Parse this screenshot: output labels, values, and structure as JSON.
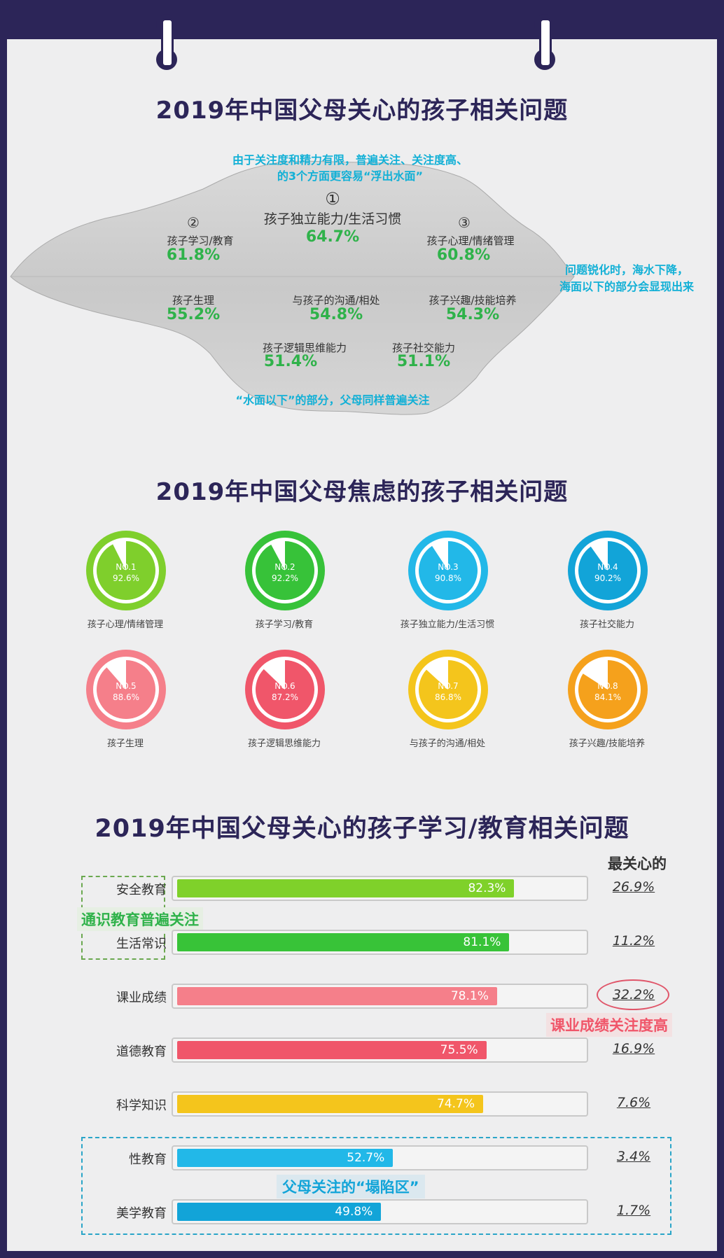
{
  "section1": {
    "title": "2019年中国父母关心的孩子相关问题",
    "note_top_line1": "由于关注度和精力有限，普遍关注、关注度高、",
    "note_top_line2": "的3个方面更容易“浮出水面”",
    "note_right_line1": "问题锐化时，海水下降，",
    "note_right_line2": "海面以下的部分会显现出来",
    "note_bottom": "“水面以下”的部分，父母同样普遍关注",
    "items": [
      {
        "rank": "①",
        "label": "孩子独立能力/生活习惯",
        "value": "64.7%"
      },
      {
        "rank": "②",
        "label": "孩子学习/教育",
        "value": "61.8%"
      },
      {
        "rank": "③",
        "label": "孩子心理/情绪管理",
        "value": "60.8%"
      },
      {
        "label": "孩子生理",
        "value": "55.2%"
      },
      {
        "label": "与孩子的沟通/相处",
        "value": "54.8%"
      },
      {
        "label": "孩子兴趣/技能培养",
        "value": "54.3%"
      },
      {
        "label": "孩子逻辑思维能力",
        "value": "51.4%"
      },
      {
        "label": "孩子社交能力",
        "value": "51.1%"
      }
    ]
  },
  "section2": {
    "title": "2019年中国父母焦虑的孩子相关问题",
    "items": [
      {
        "no": "NO.1",
        "value": "92.6%",
        "label": "孩子心理/情绪管理",
        "color": "#7fcf2c"
      },
      {
        "no": "NO.2",
        "value": "92.2%",
        "label": "孩子学习/教育",
        "color": "#37c239"
      },
      {
        "no": "NO.3",
        "value": "90.8%",
        "label": "孩子独立能力/生活习惯",
        "color": "#22b8e8"
      },
      {
        "no": "NO.4",
        "value": "90.2%",
        "label": "孩子社交能力",
        "color": "#12a4d8"
      },
      {
        "no": "NO.5",
        "value": "88.6%",
        "label": "孩子生理",
        "color": "#f57f8a"
      },
      {
        "no": "NO.6",
        "value": "87.2%",
        "label": "孩子逻辑思维能力",
        "color": "#f0566a"
      },
      {
        "no": "NO.7",
        "value": "86.8%",
        "label": "与孩子的沟通/相处",
        "color": "#f4c51c"
      },
      {
        "no": "NO.8",
        "value": "84.1%",
        "label": "孩子兴趣/技能培养",
        "color": "#f5a11c"
      }
    ]
  },
  "section3": {
    "title": "2019年中国父母关心的孩子学习/教育相关问题",
    "right_header": "最关心的",
    "callout_green": "通识教育普遍关注",
    "callout_red": "课业成绩关注度高",
    "callout_blue": "父母关注的“塌陷区”"
  },
  "chart_data": {
    "type": "bar",
    "title": "2019年中国父母关心的孩子学习/教育相关问题",
    "categories": [
      "安全教育",
      "生活常识",
      "课业成绩",
      "道德教育",
      "科学知识",
      "性教育",
      "美学教育"
    ],
    "series": [
      {
        "name": "",
        "values": [
          82.3,
          81.1,
          78.1,
          75.5,
          74.7,
          52.7,
          49.8
        ]
      },
      {
        "name": "最关心的",
        "values": [
          26.9,
          11.2,
          32.2,
          16.9,
          7.6,
          3.4,
          1.7
        ]
      }
    ],
    "value_labels": [
      "82.3%",
      "81.1%",
      "78.1%",
      "75.5%",
      "74.7%",
      "52.7%",
      "49.8%"
    ],
    "most_labels": [
      "26.9%",
      "11.2%",
      "32.2%",
      "16.9%",
      "7.6%",
      "3.4%",
      "1.7%"
    ],
    "colors": [
      "#7fd12a",
      "#38c338",
      "#f57f8a",
      "#f0566a",
      "#f4c51c",
      "#22b8e8",
      "#12a4d8"
    ],
    "xlim": [
      0,
      100
    ]
  }
}
